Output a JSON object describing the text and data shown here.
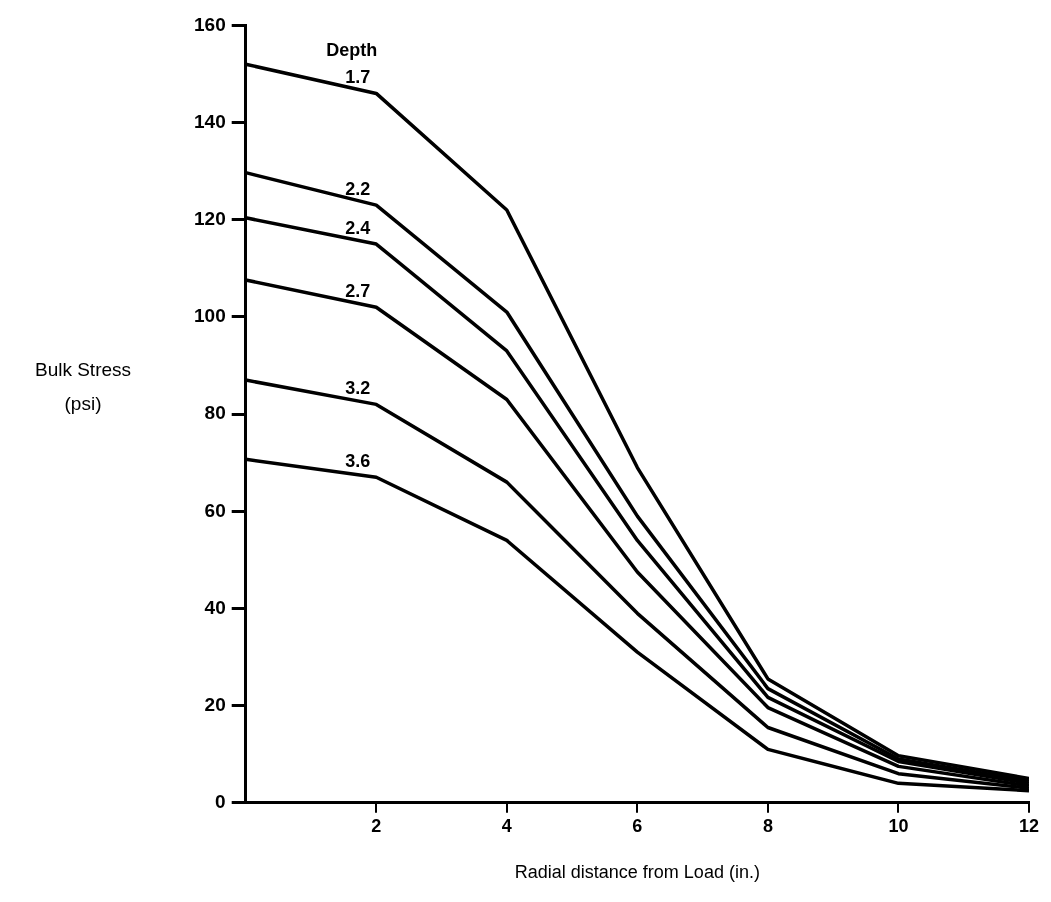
{
  "chart_data": {
    "type": "line",
    "xlabel": "Radial distance from Load (in.)",
    "ylabel": "Bulk Stress (psi)",
    "annotations": [
      "Depth"
    ],
    "x": [
      0,
      2,
      4,
      6,
      8,
      10,
      12
    ],
    "series": [
      {
        "name": "1.7",
        "color": "#000000",
        "values": [
          152,
          146,
          122,
          69,
          25.5,
          9.7,
          5
        ]
      },
      {
        "name": "2.2",
        "color": "#000000",
        "values": [
          129.7,
          123,
          101,
          59,
          23.5,
          9,
          4.5
        ]
      },
      {
        "name": "2.4",
        "color": "#000000",
        "values": [
          120.4,
          115,
          93,
          54,
          21.7,
          8.5,
          4
        ]
      },
      {
        "name": "2.7",
        "color": "#000000",
        "values": [
          107.6,
          102,
          83,
          47.5,
          19.6,
          7.5,
          3.5
        ]
      },
      {
        "name": "3.2",
        "color": "#000000",
        "values": [
          87,
          82,
          66,
          39,
          15.5,
          6,
          3
        ]
      },
      {
        "name": "3.6",
        "color": "#000000",
        "values": [
          70.7,
          67,
          54,
          31,
          11,
          4,
          2.5
        ]
      }
    ],
    "xlim": [
      0,
      12
    ],
    "xticks": [
      2,
      4,
      6,
      8,
      10,
      12
    ],
    "ylim": [
      0,
      160
    ],
    "yticks": [
      0,
      20,
      40,
      60,
      80,
      100,
      120,
      140,
      160
    ],
    "marker": "none",
    "line_style": "solid",
    "legend": false
  }
}
